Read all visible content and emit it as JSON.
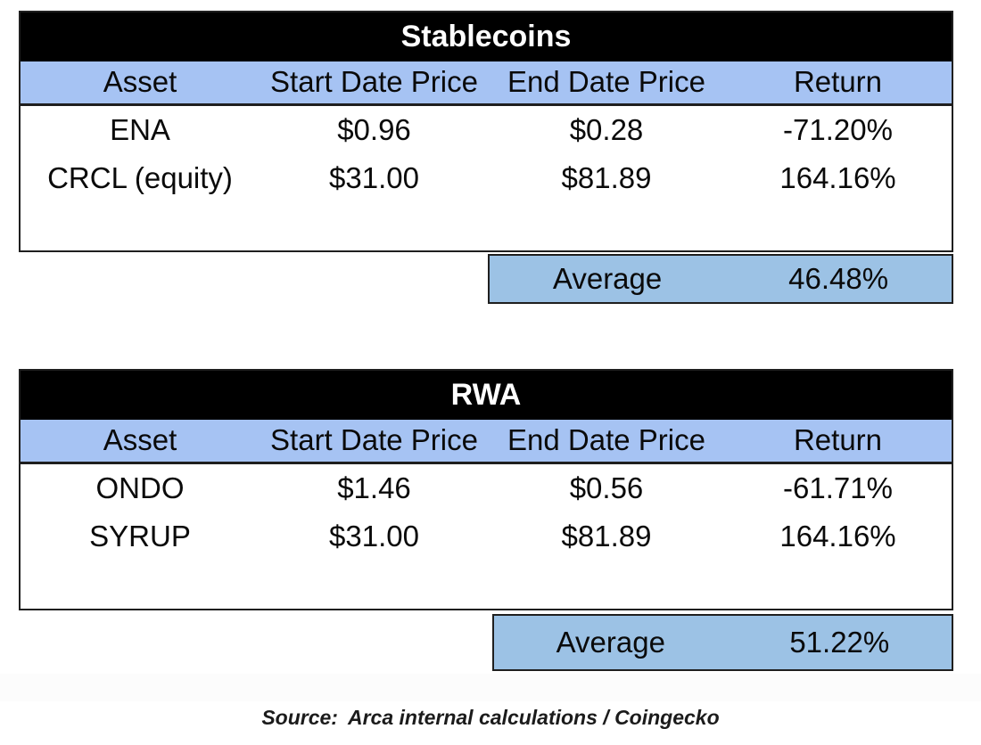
{
  "colors": {
    "title_bar_bg": "#000000",
    "title_bar_text": "#ffffff",
    "column_header_bg": "#a6c3f3",
    "average_row_bg": "#9cc2e5",
    "border": "#1f1f1f",
    "text": "#0a0a0a"
  },
  "tables": [
    {
      "title": "Stablecoins",
      "columns": [
        "Asset",
        "Start Date Price",
        "End Date Price",
        "Return"
      ],
      "rows": [
        {
          "asset": "ENA",
          "start": "$0.96",
          "end": "$0.28",
          "return": "-71.20%"
        },
        {
          "asset": "CRCL (equity)",
          "start": "$31.00",
          "end": "$81.89",
          "return": "164.16%"
        }
      ],
      "average_label": "Average",
      "average_value": "46.48%"
    },
    {
      "title": "RWA",
      "columns": [
        "Asset",
        "Start Date Price",
        "End Date Price",
        "Return"
      ],
      "rows": [
        {
          "asset": "ONDO",
          "start": "$1.46",
          "end": "$0.56",
          "return": "-61.71%"
        },
        {
          "asset": "SYRUP",
          "start": "$31.00",
          "end": "$81.89",
          "return": "164.16%"
        }
      ],
      "average_label": "Average",
      "average_value": "51.22%"
    }
  ],
  "source": {
    "label": "Source:",
    "text": "Arca internal calculations / Coingecko"
  },
  "chart_data": [
    {
      "type": "table",
      "title": "Stablecoins",
      "columns": [
        "Asset",
        "Start Date Price",
        "End Date Price",
        "Return"
      ],
      "rows": [
        [
          "ENA",
          0.96,
          0.28,
          -71.2
        ],
        [
          "CRCL (equity)",
          31.0,
          81.89,
          164.16
        ]
      ],
      "average_return_pct": 46.48,
      "units": {
        "prices": "USD",
        "return": "percent"
      }
    },
    {
      "type": "table",
      "title": "RWA",
      "columns": [
        "Asset",
        "Start Date Price",
        "End Date Price",
        "Return"
      ],
      "rows": [
        [
          "ONDO",
          1.46,
          0.56,
          -61.71
        ],
        [
          "SYRUP",
          31.0,
          81.89,
          164.16
        ]
      ],
      "average_return_pct": 51.22,
      "units": {
        "prices": "USD",
        "return": "percent"
      }
    }
  ]
}
